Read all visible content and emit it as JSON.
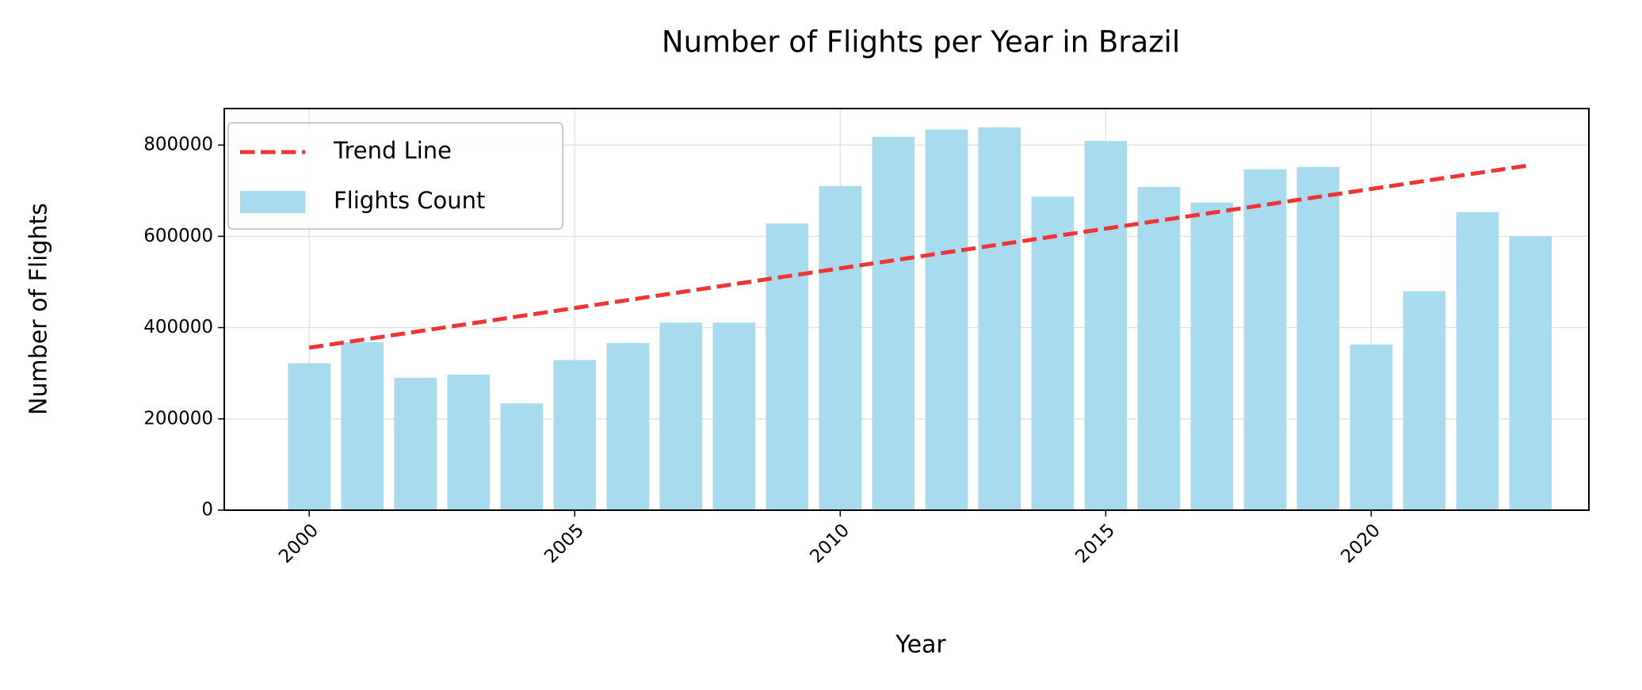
{
  "chart_data": {
    "type": "bar",
    "title": "Number of Flights per Year in Brazil",
    "xlabel": "Year",
    "ylabel": "Number of Flights",
    "x": [
      2000,
      2001,
      2002,
      2003,
      2004,
      2005,
      2006,
      2007,
      2008,
      2009,
      2010,
      2011,
      2012,
      2013,
      2014,
      2015,
      2016,
      2017,
      2018,
      2019,
      2020,
      2021,
      2022,
      2023
    ],
    "series": [
      {
        "name": "Flights Count",
        "color": "#a9dbef",
        "values": [
          322000,
          368000,
          290000,
          297000,
          234000,
          329000,
          366000,
          411000,
          411000,
          628000,
          710000,
          818000,
          834000,
          839000,
          687000,
          809000,
          708000,
          674000,
          747000,
          752000,
          363000,
          480000,
          653000,
          600000
        ]
      }
    ],
    "trend": {
      "name": "Trend Line",
      "color": "#f03434",
      "x": [
        2000,
        2023
      ],
      "values": [
        356000,
        756000
      ]
    },
    "xlim": [
      1998.4,
      2024.1
    ],
    "xticks": [
      2000,
      2005,
      2010,
      2015,
      2020
    ],
    "ylim": [
      0,
      880000
    ],
    "yticks": [
      0,
      200000,
      400000,
      600000,
      800000
    ],
    "grid": true,
    "legend": "upper left"
  }
}
